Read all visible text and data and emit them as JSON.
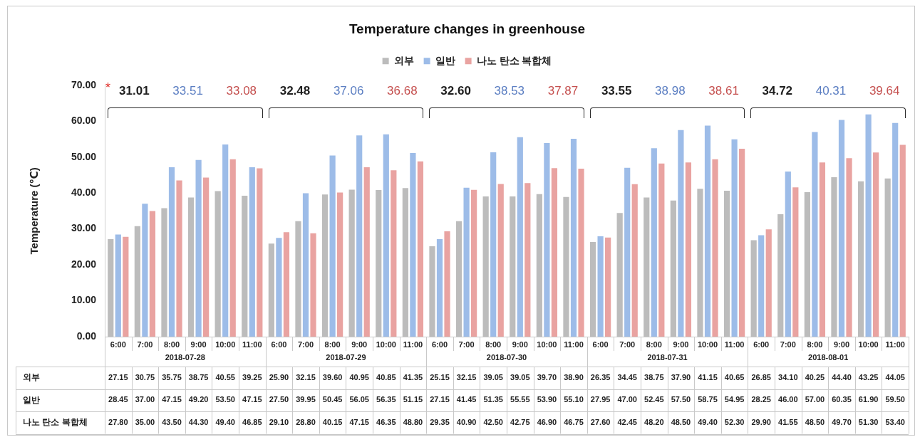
{
  "chart_data": {
    "type": "bar",
    "title": "Temperature changes in greenhouse",
    "ylabel": "Temperature (℃)",
    "legend": "top",
    "categories": [
      "6:00",
      "7:00",
      "8:00",
      "9:00",
      "10:00",
      "11:00",
      "6:00",
      "7:00",
      "8:00",
      "9:00",
      "10:00",
      "11:00",
      "6:00",
      "7:00",
      "8:00",
      "9:00",
      "10:00",
      "11:00",
      "6:00",
      "7:00",
      "8:00",
      "9:00",
      "10:00",
      "11:00",
      "6:00",
      "7:00",
      "8:00",
      "9:00",
      "10:00",
      "11:00"
    ],
    "series": [
      {
        "name": "외부",
        "color": "#bcbcbc",
        "values": [
          27.15,
          30.75,
          35.75,
          38.75,
          40.55,
          39.25,
          25.9,
          32.15,
          39.6,
          40.95,
          40.85,
          41.35,
          25.15,
          32.15,
          39.05,
          39.05,
          39.7,
          38.9,
          26.35,
          34.45,
          38.75,
          37.9,
          41.15,
          40.65,
          26.85,
          34.1,
          40.25,
          44.4,
          43.25,
          44.05
        ],
        "value_labels": [
          "27.15",
          "30.75",
          "35.75",
          "38.75",
          "40.55",
          "39.25",
          "25.90",
          "32.15",
          "39.60",
          "40.95",
          "40.85",
          "41.35",
          "25.15",
          "32.15",
          "39.05",
          "39.05",
          "39.70",
          "38.90",
          "26.35",
          "34.45",
          "38.75",
          "37.90",
          "41.15",
          "40.65",
          "26.85",
          "34.10",
          "40.25",
          "44.40",
          "43.25",
          "44.05"
        ]
      },
      {
        "name": "일반",
        "color": "#9dbce8",
        "values": [
          28.45,
          37.0,
          47.15,
          49.2,
          53.5,
          47.15,
          27.5,
          39.95,
          50.45,
          56.05,
          56.35,
          51.15,
          27.15,
          41.45,
          51.35,
          55.55,
          53.9,
          55.1,
          27.95,
          47.0,
          52.45,
          57.5,
          58.75,
          54.95,
          28.25,
          46.0,
          57.0,
          60.35,
          61.9,
          59.5
        ],
        "value_labels": [
          "28.45",
          "37.00",
          "47.15",
          "49.20",
          "53.50",
          "47.15",
          "27.50",
          "39.95",
          "50.45",
          "56.05",
          "56.35",
          "51.15",
          "27.15",
          "41.45",
          "51.35",
          "55.55",
          "53.90",
          "55.10",
          "27.95",
          "47.00",
          "52.45",
          "57.50",
          "58.75",
          "54.95",
          "28.25",
          "46.00",
          "57.00",
          "60.35",
          "61.90",
          "59.50"
        ]
      },
      {
        "name": "나노 탄소 복합체",
        "color": "#e9a3a1",
        "values": [
          27.8,
          35.0,
          43.5,
          44.3,
          49.4,
          46.85,
          29.1,
          28.8,
          40.15,
          47.15,
          46.35,
          48.8,
          29.35,
          40.9,
          42.5,
          42.75,
          46.9,
          46.75,
          27.6,
          42.45,
          48.2,
          48.5,
          49.4,
          52.3,
          29.9,
          41.55,
          48.5,
          49.7,
          51.3,
          53.4
        ],
        "value_labels": [
          "27.80",
          "35.00",
          "43.50",
          "44.30",
          "49.40",
          "46.85",
          "29.10",
          "28.80",
          "40.15",
          "47.15",
          "46.35",
          "48.80",
          "29.35",
          "40.90",
          "42.50",
          "42.75",
          "46.90",
          "46.75",
          "27.60",
          "42.45",
          "48.20",
          "48.50",
          "49.40",
          "52.30",
          "29.90",
          "41.55",
          "48.50",
          "49.70",
          "51.30",
          "53.40"
        ]
      }
    ],
    "ylim": [
      0,
      70
    ],
    "yticks": [
      {
        "value": 0,
        "label": "0.00"
      },
      {
        "value": 10,
        "label": "10.00"
      },
      {
        "value": 20,
        "label": "20.00"
      },
      {
        "value": 30,
        "label": "30.00"
      },
      {
        "value": 40,
        "label": "40.00"
      },
      {
        "value": 50,
        "label": "50.00"
      },
      {
        "value": 60,
        "label": "60.00"
      },
      {
        "value": 70,
        "label": "70.00"
      }
    ],
    "annotations": [
      "*",
      "31.01",
      "33.51",
      "33.08",
      "32.48",
      "37.06",
      "36.68",
      "32.60",
      "38.53",
      "37.87",
      "33.55",
      "38.98",
      "38.61",
      "34.72",
      "40.31",
      "39.64",
      "2018-07-28",
      "2018-07-29",
      "2018-07-30",
      "2018-07-31",
      "2018-08-01"
    ]
  }
}
